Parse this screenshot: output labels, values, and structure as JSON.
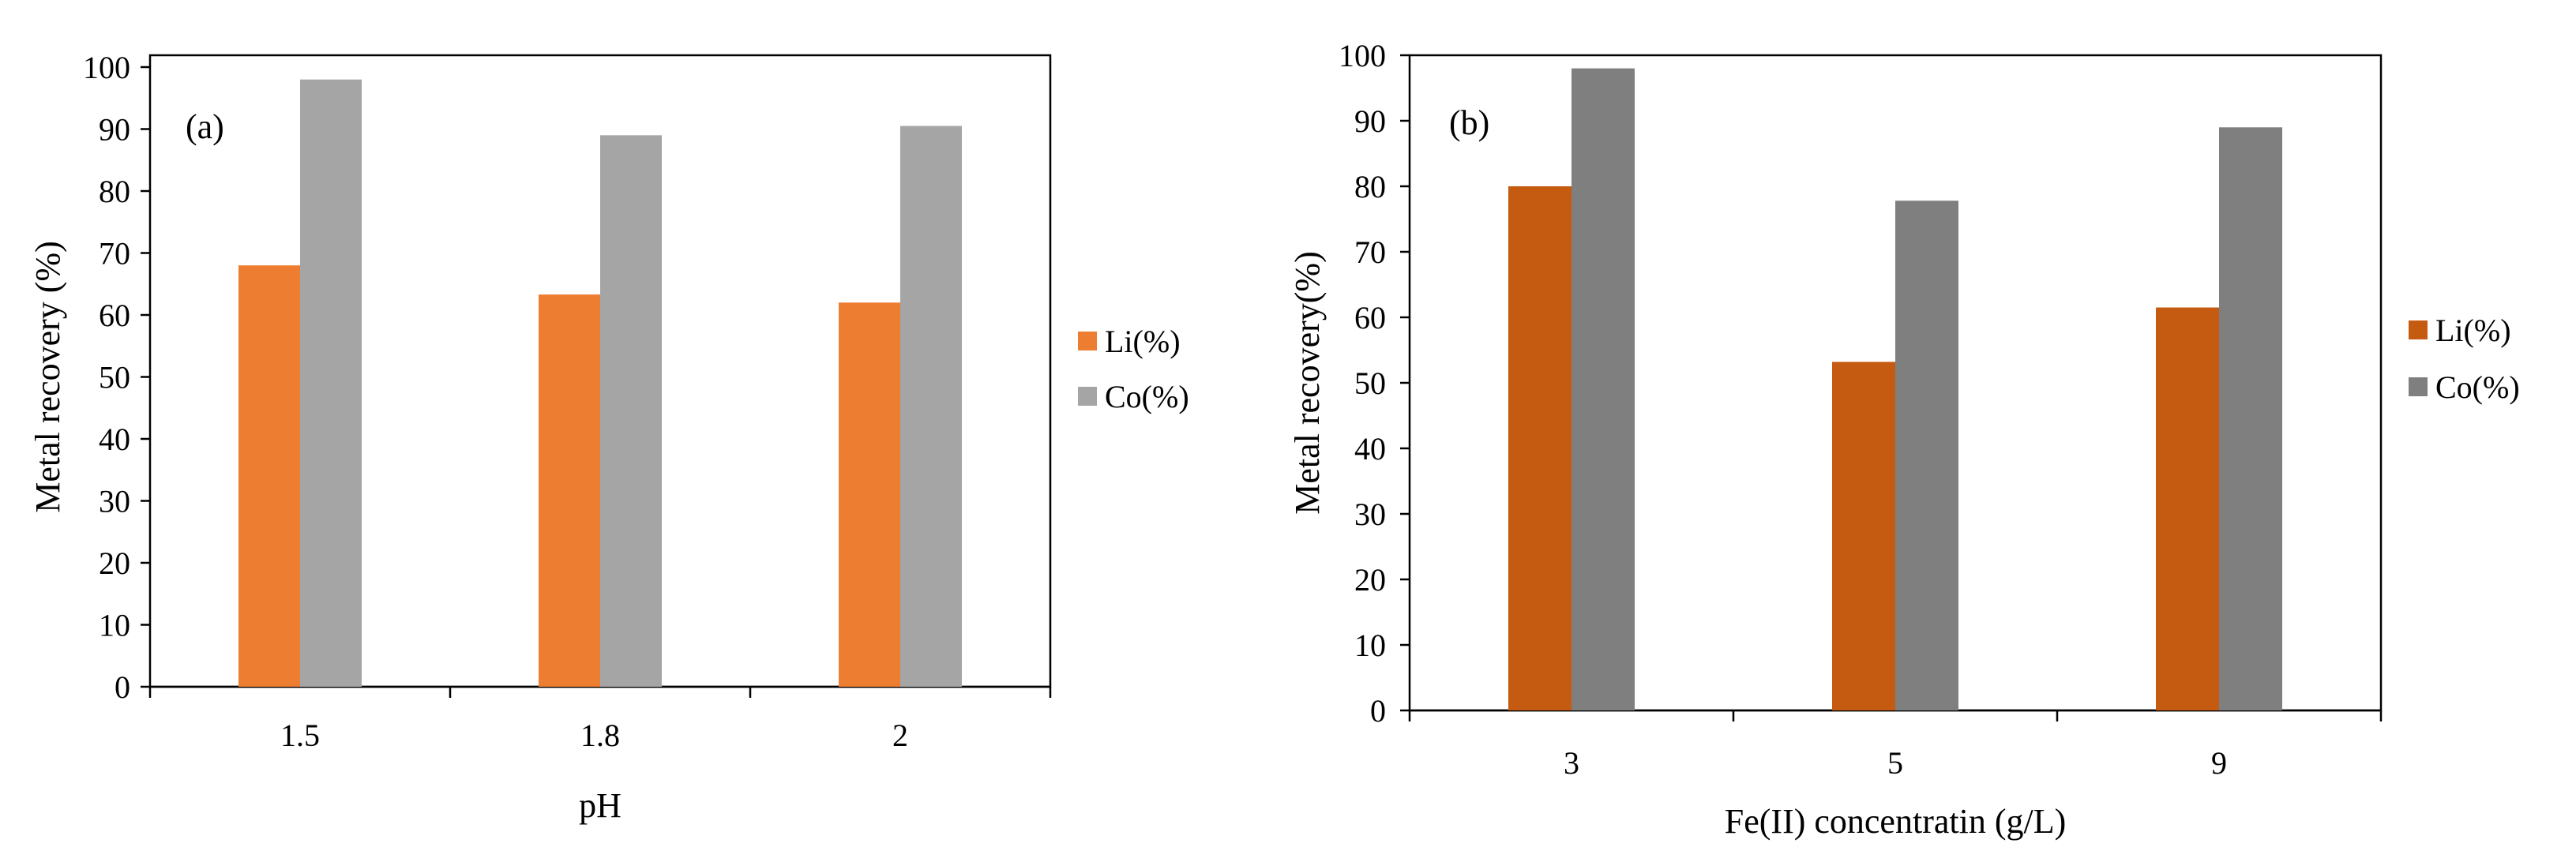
{
  "chart_data": [
    {
      "type": "bar",
      "panel_label": "(a)",
      "categories": [
        "1.5",
        "1.8",
        "2"
      ],
      "series": [
        {
          "name": "Li(%)",
          "values": [
            68,
            63.3,
            62
          ],
          "color": "#ED7D31"
        },
        {
          "name": "Co(%)",
          "values": [
            98,
            89,
            90.5
          ],
          "color": "#A5A5A5"
        }
      ],
      "title": "",
      "xlabel": "pH",
      "ylabel": "Metal recovery (%)",
      "ylim": [
        0,
        100
      ],
      "yticks": [
        "0",
        "10",
        "20",
        "30",
        "40",
        "50",
        "60",
        "70",
        "80",
        "90",
        "100"
      ],
      "grid": false,
      "legend": "right"
    },
    {
      "type": "bar",
      "panel_label": "(b)",
      "categories": [
        "3",
        "5",
        "9"
      ],
      "series": [
        {
          "name": "Li(%)",
          "values": [
            80,
            53.2,
            61.5
          ],
          "color": "#C55A11"
        },
        {
          "name": "Co(%)",
          "values": [
            98,
            77.8,
            89
          ],
          "color": "#7F7F7F"
        }
      ],
      "title": "",
      "xlabel": "Fe(II) concentratin (g/L)",
      "ylabel": "Metal recovery(%)",
      "ylim": [
        0,
        100
      ],
      "yticks": [
        "0",
        "10",
        "20",
        "30",
        "40",
        "50",
        "60",
        "70",
        "80",
        "90",
        "100"
      ],
      "grid": false,
      "legend": "right"
    }
  ]
}
